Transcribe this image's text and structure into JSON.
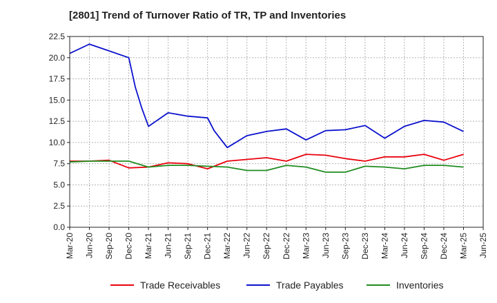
{
  "chart_data": {
    "type": "line",
    "title": "[2801]  Trend of Turnover Ratio of TR, TP and Inventories",
    "xlabel": "",
    "ylabel": "",
    "ylim": [
      0,
      22.5
    ],
    "yticks": [
      "0.0",
      "2.5",
      "5.0",
      "7.5",
      "10.0",
      "12.5",
      "15.0",
      "17.5",
      "20.0",
      "22.5"
    ],
    "xticks": [
      "Mar-20",
      "Jun-20",
      "Sep-20",
      "Dec-20",
      "Mar-21",
      "Jun-21",
      "Sep-21",
      "Dec-21",
      "Mar-22",
      "Jun-22",
      "Sep-22",
      "Dec-22",
      "Mar-23",
      "Jun-23",
      "Sep-23",
      "Dec-23",
      "Mar-24",
      "Jun-24",
      "Sep-24",
      "Dec-24",
      "Mar-25",
      "Jun-25"
    ],
    "grid": true,
    "legend_position": "bottom",
    "series": [
      {
        "name": "Trade Receivables",
        "color": "#e8000b",
        "points": [
          [
            "Mar-20",
            7.8
          ],
          [
            "Jun-20",
            7.8
          ],
          [
            "Sep-20",
            7.9
          ],
          [
            "Dec-20",
            7.0
          ],
          [
            "Mar-21",
            7.1
          ],
          [
            "Jun-21",
            7.6
          ],
          [
            "Sep-21",
            7.5
          ],
          [
            "Dec-21",
            6.9
          ],
          [
            "Mar-22",
            7.8
          ],
          [
            "Jun-22",
            8.0
          ],
          [
            "Sep-22",
            8.2
          ],
          [
            "Dec-22",
            7.8
          ],
          [
            "Mar-23",
            8.6
          ],
          [
            "Jun-23",
            8.5
          ],
          [
            "Sep-23",
            8.1
          ],
          [
            "Dec-23",
            7.8
          ],
          [
            "Mar-24",
            8.3
          ],
          [
            "Jun-24",
            8.3
          ],
          [
            "Sep-24",
            8.6
          ],
          [
            "Dec-24",
            7.9
          ],
          [
            "Mar-25",
            8.6
          ]
        ]
      },
      {
        "name": "Trade Payables",
        "color": "#0a10cc",
        "points": [
          [
            "Mar-20",
            20.5
          ],
          [
            "Jun-20",
            21.6
          ],
          [
            "Sep-20",
            20.8
          ],
          [
            "Dec-20",
            20.0
          ],
          [
            "Jan-21",
            16.5
          ],
          [
            "Feb-21",
            14.0
          ],
          [
            "Mar-21",
            11.9
          ],
          [
            "Jun-21",
            13.5
          ],
          [
            "Sep-21",
            13.1
          ],
          [
            "Dec-21",
            12.9
          ],
          [
            "Jan-22",
            11.4
          ],
          [
            "Mar-22",
            9.4
          ],
          [
            "Jun-22",
            10.8
          ],
          [
            "Sep-22",
            11.3
          ],
          [
            "Dec-22",
            11.6
          ],
          [
            "Mar-23",
            10.3
          ],
          [
            "Jun-23",
            11.4
          ],
          [
            "Sep-23",
            11.5
          ],
          [
            "Dec-23",
            12.0
          ],
          [
            "Mar-24",
            10.5
          ],
          [
            "Jun-24",
            11.9
          ],
          [
            "Sep-24",
            12.6
          ],
          [
            "Dec-24",
            12.4
          ],
          [
            "Mar-25",
            11.3
          ]
        ]
      },
      {
        "name": "Inventories",
        "color": "#1f8c1f",
        "points": [
          [
            "Mar-20",
            7.7
          ],
          [
            "Jun-20",
            7.8
          ],
          [
            "Sep-20",
            7.8
          ],
          [
            "Dec-20",
            7.8
          ],
          [
            "Mar-21",
            7.1
          ],
          [
            "Jun-21",
            7.3
          ],
          [
            "Sep-21",
            7.3
          ],
          [
            "Dec-21",
            7.2
          ],
          [
            "Mar-22",
            7.1
          ],
          [
            "Jun-22",
            6.7
          ],
          [
            "Sep-22",
            6.7
          ],
          [
            "Dec-22",
            7.3
          ],
          [
            "Mar-23",
            7.1
          ],
          [
            "Jun-23",
            6.5
          ],
          [
            "Sep-23",
            6.5
          ],
          [
            "Dec-23",
            7.2
          ],
          [
            "Mar-24",
            7.1
          ],
          [
            "Jun-24",
            6.9
          ],
          [
            "Sep-24",
            7.3
          ],
          [
            "Dec-24",
            7.3
          ],
          [
            "Mar-25",
            7.1
          ]
        ]
      }
    ]
  }
}
